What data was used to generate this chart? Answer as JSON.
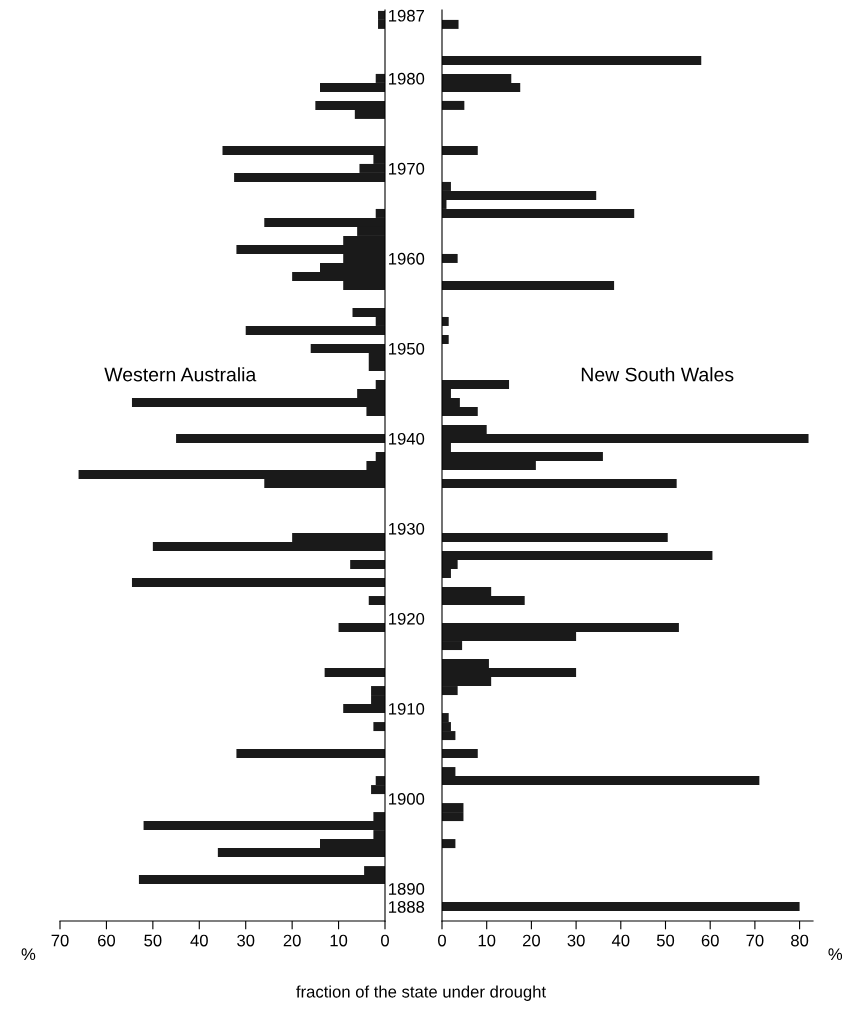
{
  "chart_data": [
    {
      "type": "bar",
      "orientation": "horizontal",
      "xlabel": "fraction of the state under drought",
      "annotations": [
        "%"
      ],
      "categories": [
        "1987",
        null,
        null,
        null,
        null,
        null,
        null,
        "1980",
        null,
        null,
        null,
        null,
        null,
        null,
        null,
        null,
        null,
        "1970",
        null,
        null,
        null,
        null,
        null,
        null,
        null,
        null,
        null,
        "1960",
        null,
        null,
        null,
        null,
        null,
        null,
        null,
        null,
        null,
        "1950",
        null,
        null,
        null,
        null,
        null,
        null,
        null,
        null,
        null,
        "1940",
        null,
        null,
        null,
        null,
        null,
        null,
        null,
        null,
        null,
        "1930",
        null,
        null,
        null,
        null,
        null,
        null,
        null,
        null,
        null,
        "1920",
        null,
        null,
        null,
        null,
        null,
        null,
        null,
        null,
        null,
        "1910",
        null,
        null,
        null,
        null,
        null,
        null,
        null,
        null,
        null,
        "1900",
        null,
        null,
        null,
        null,
        null,
        null,
        null,
        null,
        null,
        "1890",
        null,
        "1888"
      ],
      "series": [
        {
          "name": "Western Australia",
          "color": "#1a1a1a",
          "values": [
            1.5,
            1.5,
            0,
            0,
            0,
            0,
            0,
            2,
            14,
            0,
            15,
            6.5,
            0,
            0,
            0,
            35,
            2.5,
            5.5,
            32.5,
            0,
            0,
            0,
            2,
            26,
            6,
            9,
            32,
            9,
            14,
            20,
            9,
            0,
            0,
            7,
            2,
            30,
            0,
            16,
            3.5,
            3.5,
            0,
            2,
            6,
            54.5,
            4,
            0,
            0,
            45,
            0,
            2,
            4,
            66,
            26,
            0,
            0,
            0,
            0,
            0,
            20,
            50,
            0,
            7.5,
            0,
            54.5,
            0,
            3.5,
            0,
            0,
            10,
            0,
            0,
            0,
            0,
            13,
            0,
            3,
            3,
            9,
            0,
            2.5,
            0,
            0,
            32,
            0,
            0,
            2,
            3,
            0,
            0,
            2.5,
            52,
            2.5,
            14,
            36,
            0,
            4.5,
            53,
            0,
            0,
            0
          ]
        }
      ],
      "xlim": [
        70,
        0
      ],
      "xticks": [
        70,
        60,
        50,
        40,
        30,
        20,
        10,
        0
      ]
    },
    {
      "type": "bar",
      "orientation": "horizontal",
      "annotations": [
        "%"
      ],
      "tick_labels": "x",
      "categories": [
        "1987",
        null,
        null,
        null,
        null,
        null,
        null,
        "1980",
        null,
        null,
        null,
        null,
        null,
        null,
        null,
        null,
        null,
        "1970",
        null,
        null,
        null,
        null,
        null,
        null,
        null,
        null,
        null,
        "1960",
        null,
        null,
        null,
        null,
        null,
        null,
        null,
        null,
        null,
        "1950",
        null,
        null,
        null,
        null,
        null,
        null,
        null,
        null,
        null,
        "1940",
        null,
        null,
        null,
        null,
        null,
        null,
        null,
        null,
        null,
        "1930",
        null,
        null,
        null,
        null,
        null,
        null,
        null,
        null,
        null,
        "1920",
        null,
        null,
        null,
        null,
        null,
        null,
        null,
        null,
        null,
        "1910",
        null,
        null,
        null,
        null,
        null,
        null,
        null,
        null,
        null,
        "1900",
        null,
        null,
        null,
        null,
        null,
        null,
        null,
        null,
        null,
        "1890",
        null,
        "1888"
      ],
      "series": [
        {
          "name": "New South Wales",
          "color": "#1a1a1a",
          "values": [
            0,
            3.7,
            0,
            0,
            0,
            58,
            0,
            15.5,
            17.5,
            0,
            5,
            0,
            0,
            0,
            0,
            8,
            0,
            0,
            0,
            2,
            34.5,
            1,
            43,
            0,
            0,
            0,
            0,
            3.5,
            0,
            0,
            38.5,
            0,
            0,
            0,
            1.5,
            0,
            1.5,
            0,
            0,
            0,
            0,
            15,
            2,
            4,
            8,
            0,
            10,
            82,
            2,
            36,
            21,
            0,
            52.5,
            0,
            0,
            0,
            0,
            0,
            50.5,
            0,
            60.5,
            3.5,
            2,
            0,
            11,
            18.5,
            0,
            0,
            53,
            30,
            4.5,
            0,
            10.5,
            30,
            11,
            3.5,
            0,
            0,
            1.5,
            2,
            3,
            0,
            8,
            0,
            3,
            71,
            0,
            0,
            4.8,
            4.8,
            0,
            0,
            3,
            0,
            0,
            0,
            0,
            0,
            0,
            80
          ]
        }
      ],
      "xlim": [
        0,
        83
      ],
      "xticks": [
        0,
        10,
        20,
        30,
        40,
        50,
        60,
        70,
        80
      ]
    }
  ]
}
